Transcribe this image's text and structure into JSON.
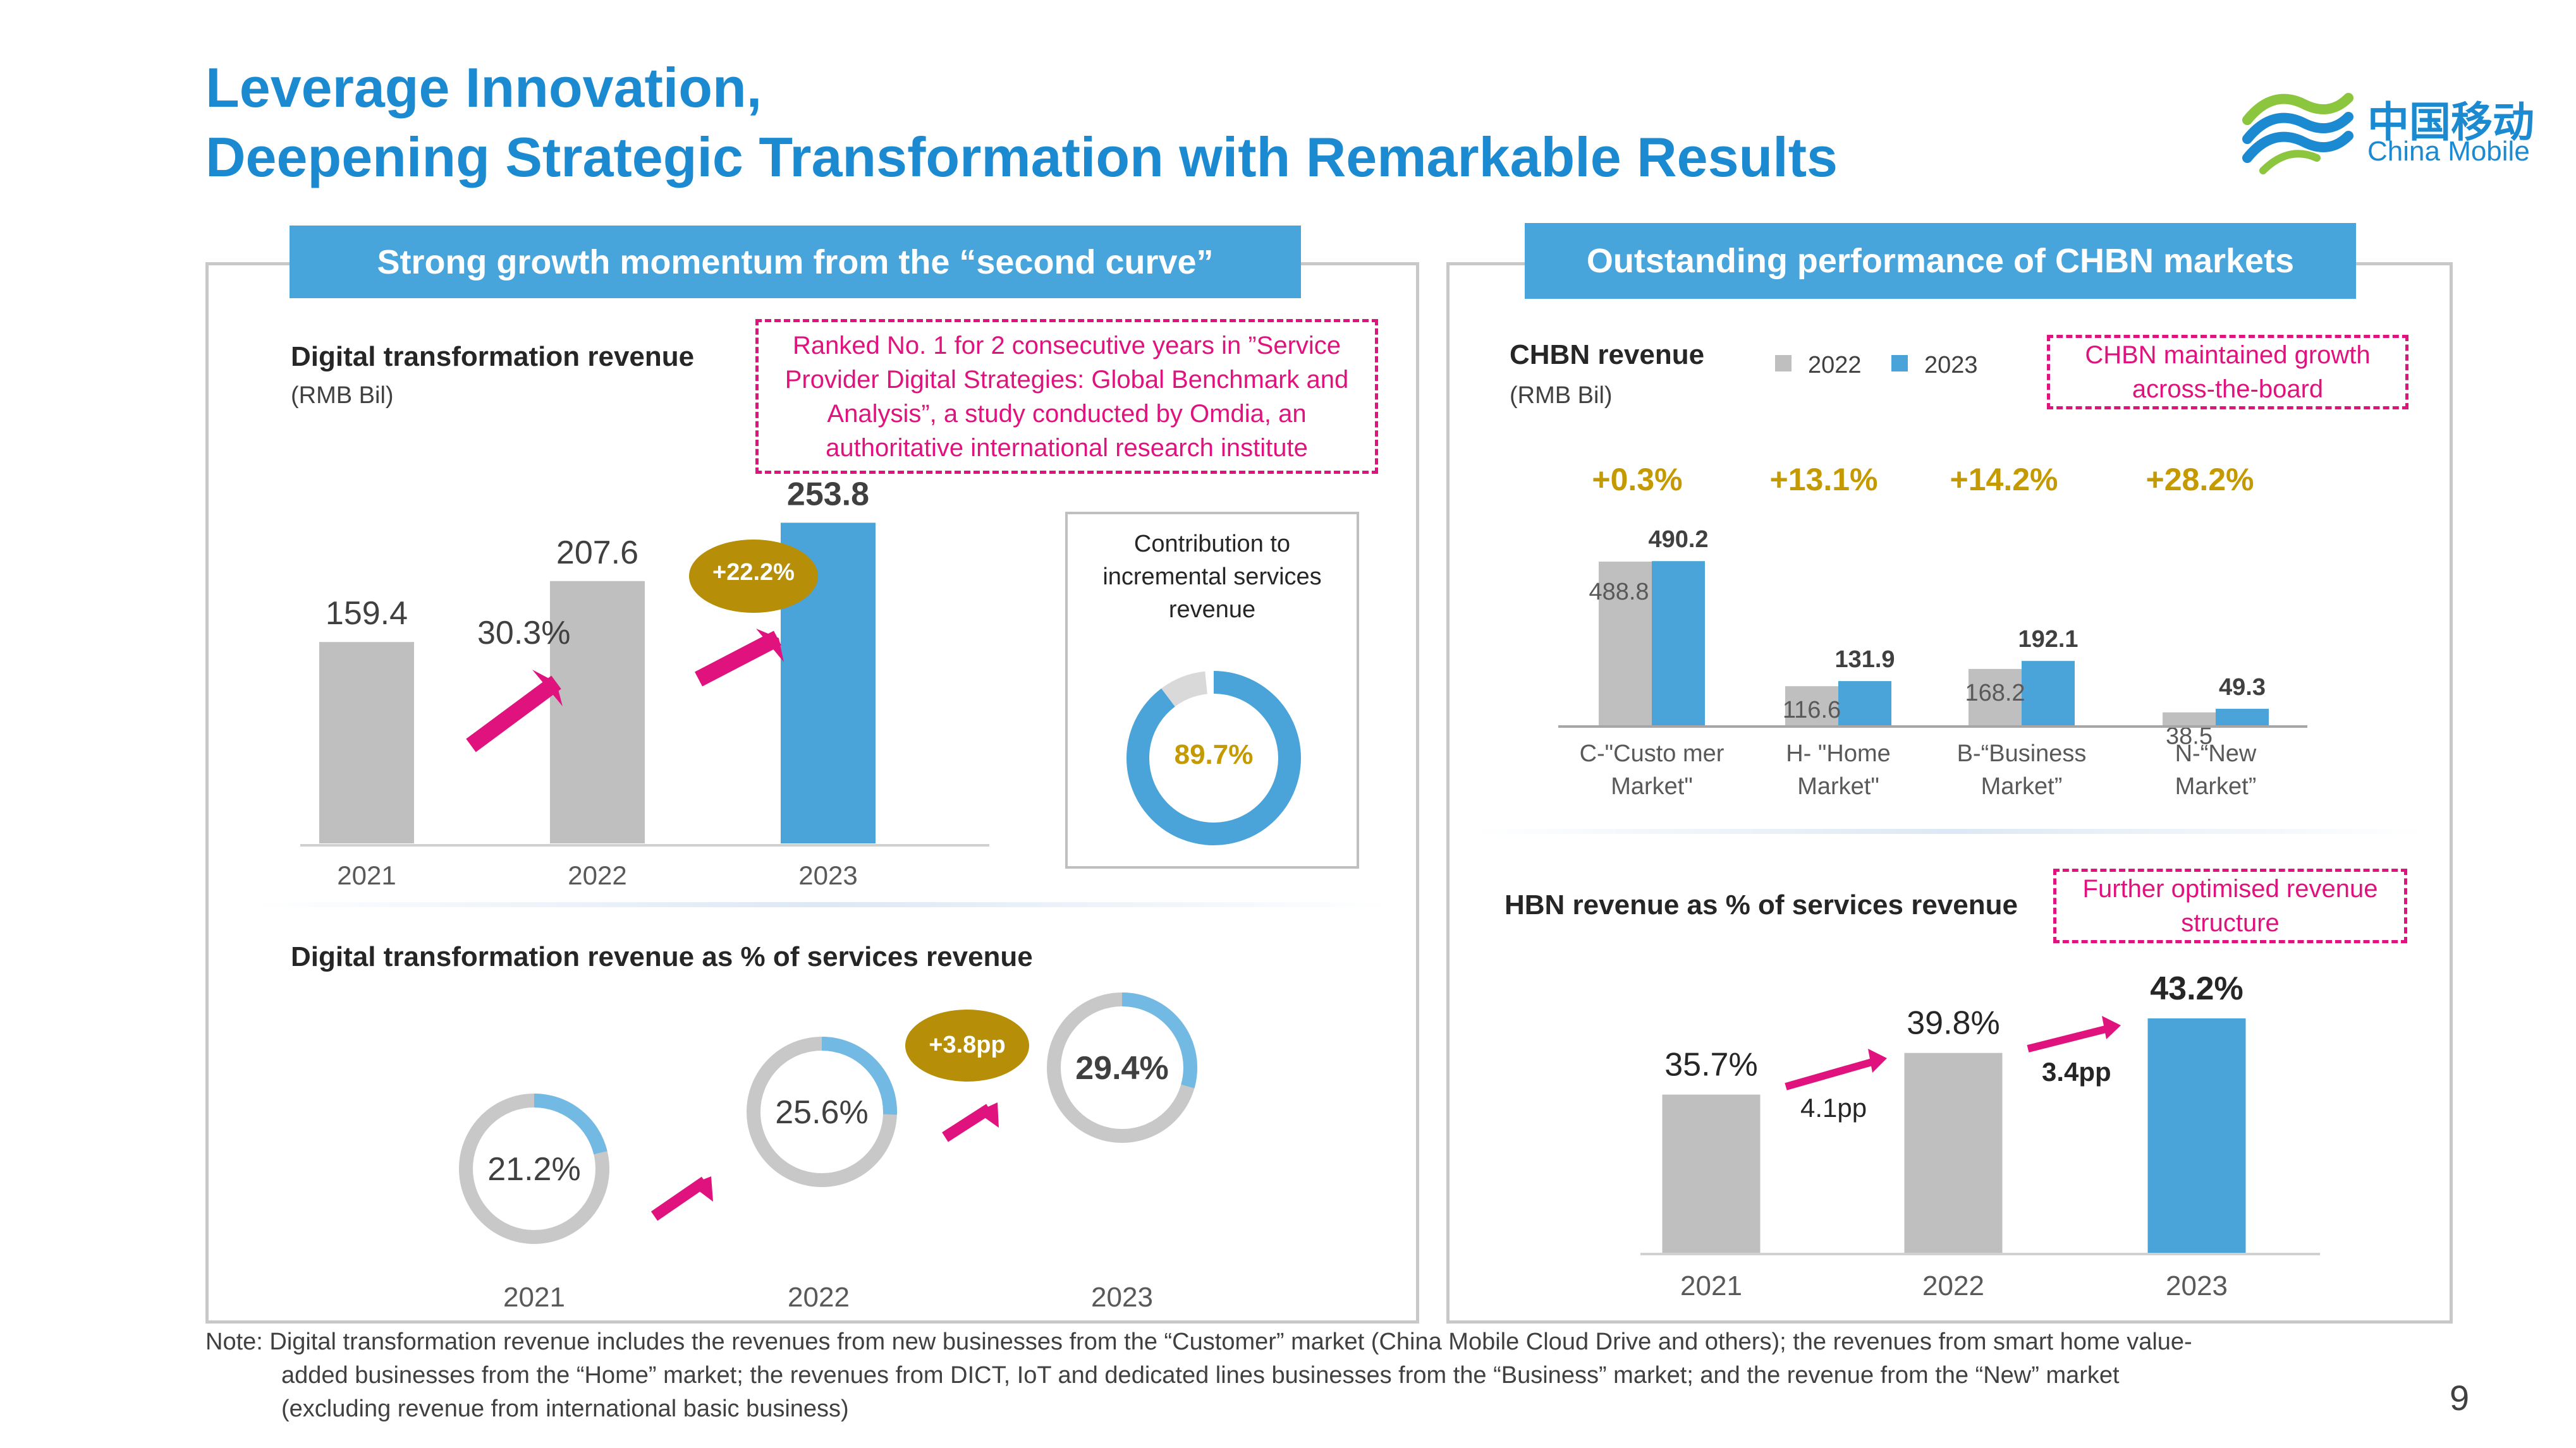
{
  "header": {
    "title_line1": "Leverage Innovation,",
    "title_line2": "Deepening Strategic Transformation with Remarkable Results",
    "logo_cn": "中国移动",
    "logo_en": "China Mobile"
  },
  "left_panel": {
    "banner": "Strong growth momentum from the “second curve”",
    "dt_title": "Digital transformation revenue",
    "dt_unit": "(RMB Bil)",
    "callout": "Ranked No. 1 for 2 consecutive years in ”Service Provider Digital Strategies: Global Benchmark and Analysis”, a study conducted by Omdia, an authoritative international research institute",
    "growth_2022": "30.3%",
    "growth_2023": "+22.2%",
    "contribution_title": "Contribution to incremental services revenue",
    "contribution_value": "89.7%",
    "pct_title": "Digital transformation revenue as % of services revenue",
    "pct_growth": "+3.8pp"
  },
  "right_panel": {
    "banner": "Outstanding performance of CHBN markets",
    "chbn_title": "CHBN revenue",
    "chbn_unit": "(RMB Bil)",
    "callout1": "CHBN maintained growth across-the-board",
    "growth_labels": [
      "+0.3%",
      "+13.1%",
      "+14.2%",
      "+28.2%"
    ],
    "hbn_title": "HBN revenue as % of services revenue",
    "callout2": "Further optimised revenue structure",
    "hbn_delta1": "4.1pp",
    "hbn_delta2": "3.4pp"
  },
  "footer": {
    "note_line1": "Note: Digital transformation revenue includes the revenues from new businesses from the “Customer” market (China Mobile Cloud Drive and others); the revenues from smart home value-",
    "note_line2": "added businesses from the “Home” market;  the revenues from DICT, IoT and dedicated lines businesses from the “Business” market; and the revenue from the “New” market",
    "note_line3": "(excluding revenue from international basic business)",
    "page_number": "9"
  },
  "colors": {
    "brand_blue": "#1b8ad0",
    "bar_blue": "#4aa4da",
    "bar_gray": "#bfbfbf",
    "magenta": "#e0137e",
    "gold": "#c49a00",
    "gold_badge": "#b78e08"
  },
  "chart_data": [
    {
      "type": "bar",
      "title": "Digital transformation revenue",
      "ylabel": "(RMB Bil)",
      "categories": [
        "2021",
        "2022",
        "2023"
      ],
      "values": [
        159.4,
        207.6,
        253.8
      ],
      "labels": [
        "159.4",
        "207.6",
        "253.8"
      ],
      "ylim": [
        0,
        270
      ]
    },
    {
      "type": "pie",
      "title": "Contribution to incremental services revenue",
      "values": [
        89.7,
        10.3
      ],
      "labels": [
        "89.7%",
        ""
      ]
    },
    {
      "type": "pie",
      "title": "Digital transformation revenue as % of services revenue",
      "categories": [
        "2021",
        "2022",
        "2023"
      ],
      "values": [
        21.2,
        25.6,
        29.4
      ],
      "labels": [
        "21.2%",
        "25.6%",
        "29.4%"
      ]
    },
    {
      "type": "bar",
      "title": "CHBN revenue",
      "ylabel": "(RMB Bil)",
      "categories": [
        "C-\"Customer Market\"",
        "H- \"Home Market\"",
        "B-“Business Market”",
        "N-“New Market”"
      ],
      "category_lines": [
        [
          "C-\"Custo mer",
          "Market\""
        ],
        [
          "H- \"Home",
          "Market\""
        ],
        [
          "B-“Business",
          "Market”"
        ],
        [
          "N-“New",
          "Market”"
        ]
      ],
      "series": [
        {
          "name": "2022",
          "values": [
            488.8,
            116.6,
            168.2,
            38.5
          ],
          "labels": [
            "488.8",
            "116.6",
            "168.2",
            "38.5"
          ]
        },
        {
          "name": "2023",
          "values": [
            490.2,
            131.9,
            192.1,
            49.3
          ],
          "labels": [
            "490.2",
            "131.9",
            "192.1",
            "49.3"
          ]
        }
      ],
      "legend": "top",
      "ylim": [
        0,
        520
      ]
    },
    {
      "type": "bar",
      "title": "HBN revenue as % of services revenue",
      "categories": [
        "2021",
        "2022",
        "2023"
      ],
      "values": [
        35.7,
        39.8,
        43.2
      ],
      "labels": [
        "35.7%",
        "39.8%",
        "43.2%"
      ],
      "ylim": [
        0,
        47
      ]
    }
  ]
}
